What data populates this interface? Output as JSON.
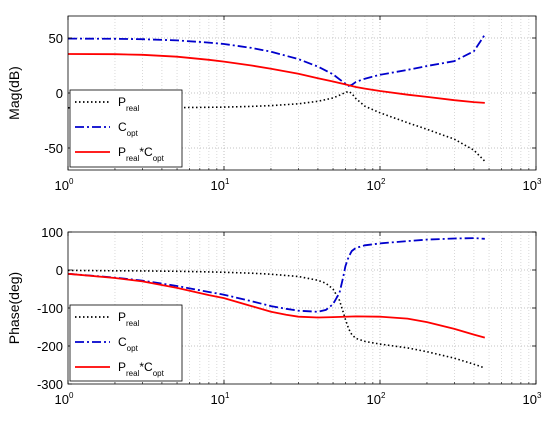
{
  "chart_data": [
    {
      "type": "line",
      "ylabel": "Mag(dB)",
      "xscale": "log",
      "xlim": [
        1,
        1000
      ],
      "ylim": [
        -70,
        70
      ],
      "xticks": [
        1,
        10,
        100,
        1000
      ],
      "xtick_labels": [
        {
          "base": "10",
          "exp": "0"
        },
        {
          "base": "10",
          "exp": "1"
        },
        {
          "base": "10",
          "exp": "2"
        },
        {
          "base": "10",
          "exp": "3"
        }
      ],
      "yticks": [
        -50,
        0,
        50
      ],
      "ytick_labels": [
        "-50",
        "0",
        "50"
      ],
      "grid": "dotted",
      "legend_position": "bottom-left",
      "series": [
        {
          "name_main": "P",
          "name_sub": "real",
          "name_after": "",
          "color": "#000000",
          "style": "dotted",
          "x": [
            1,
            1.5,
            2,
            3,
            5,
            8,
            10,
            15,
            20,
            30,
            40,
            50,
            55,
            60,
            63,
            66,
            70,
            80,
            100,
            150,
            200,
            300,
            400,
            470
          ],
          "y": [
            -13.5,
            -13.5,
            -13.5,
            -13.5,
            -13.3,
            -13,
            -12.8,
            -12.2,
            -11.5,
            -9.8,
            -7.5,
            -4.5,
            -2,
            0.5,
            1.5,
            -0.5,
            -5,
            -12,
            -18,
            -27,
            -33,
            -42,
            -52,
            -62
          ]
        },
        {
          "name_main": "C",
          "name_sub": "opt",
          "name_after": "",
          "color": "#0000cc",
          "style": "dashdot",
          "x": [
            1,
            2,
            3,
            5,
            8,
            10,
            15,
            20,
            30,
            40,
            50,
            55,
            60,
            63,
            66,
            70,
            80,
            100,
            150,
            200,
            300,
            400,
            470
          ],
          "y": [
            49.5,
            49.3,
            48.9,
            47.8,
            45.8,
            44.5,
            41,
            37.5,
            30.8,
            24,
            17,
            12.5,
            8.5,
            6.5,
            7.5,
            10,
            13,
            16.5,
            21,
            24.5,
            29,
            38,
            53
          ]
        },
        {
          "name_main": "P",
          "name_sub": "real",
          "name_after": "*C",
          "name_sub2": "opt",
          "color": "#ff0000",
          "style": "solid",
          "x": [
            1,
            2,
            3,
            5,
            8,
            10,
            15,
            20,
            30,
            40,
            50,
            60,
            70,
            80,
            100,
            150,
            200,
            300,
            400,
            470
          ],
          "y": [
            35.5,
            35.3,
            34.7,
            33,
            30.2,
            28.5,
            25,
            22,
            17.5,
            13.5,
            10.5,
            7.8,
            5.5,
            4,
            1.8,
            -1.5,
            -3.5,
            -6.5,
            -8.3,
            -9
          ]
        }
      ]
    },
    {
      "type": "line",
      "ylabel": "Phase(deg)",
      "xscale": "log",
      "xlim": [
        1,
        1000
      ],
      "ylim": [
        -300,
        100
      ],
      "xticks": [
        1,
        10,
        100,
        1000
      ],
      "xtick_labels": [
        {
          "base": "10",
          "exp": "0"
        },
        {
          "base": "10",
          "exp": "1"
        },
        {
          "base": "10",
          "exp": "2"
        },
        {
          "base": "10",
          "exp": "3"
        }
      ],
      "yticks": [
        -300,
        -200,
        -100,
        0,
        100
      ],
      "ytick_labels": [
        "-300",
        "-200",
        "-100",
        "0",
        "100"
      ],
      "grid": "dotted",
      "legend_position": "bottom-left",
      "series": [
        {
          "name_main": "P",
          "name_sub": "real",
          "name_after": "",
          "color": "#000000",
          "style": "dotted",
          "x": [
            1,
            2,
            3,
            5,
            8,
            10,
            15,
            20,
            30,
            40,
            45,
            50,
            55,
            58,
            60,
            63,
            66,
            70,
            80,
            100,
            150,
            200,
            300,
            400,
            470
          ],
          "y": [
            -1,
            -2,
            -2.5,
            -3.5,
            -5,
            -6,
            -8.5,
            -11,
            -17,
            -27,
            -35,
            -50,
            -80,
            -110,
            -130,
            -155,
            -170,
            -180,
            -188,
            -195,
            -205,
            -215,
            -232,
            -248,
            -258
          ]
        },
        {
          "name_main": "C",
          "name_sub": "opt",
          "name_after": "",
          "color": "#0000cc",
          "style": "dashdot",
          "x": [
            1,
            2,
            3,
            5,
            8,
            10,
            15,
            20,
            25,
            30,
            40,
            45,
            50,
            55,
            58,
            60,
            63,
            66,
            70,
            80,
            100,
            150,
            200,
            300,
            400,
            470
          ],
          "y": [
            -10,
            -20,
            -28,
            -42,
            -58,
            -65,
            -82,
            -95,
            -102,
            -107,
            -110,
            -105,
            -90,
            -60,
            -20,
            10,
            35,
            50,
            58,
            65,
            70,
            76,
            80,
            83,
            84,
            82
          ]
        },
        {
          "name_main": "P",
          "name_sub": "real",
          "name_after": "*C",
          "name_sub2": "opt",
          "color": "#ff0000",
          "style": "solid",
          "x": [
            1,
            2,
            3,
            5,
            8,
            10,
            15,
            20,
            25,
            30,
            40,
            50,
            70,
            100,
            150,
            200,
            300,
            400,
            470
          ],
          "y": [
            -10,
            -21,
            -30,
            -47,
            -66,
            -74,
            -95,
            -110,
            -118,
            -123,
            -125,
            -124,
            -122,
            -123,
            -128,
            -137,
            -155,
            -170,
            -178
          ]
        }
      ]
    }
  ]
}
